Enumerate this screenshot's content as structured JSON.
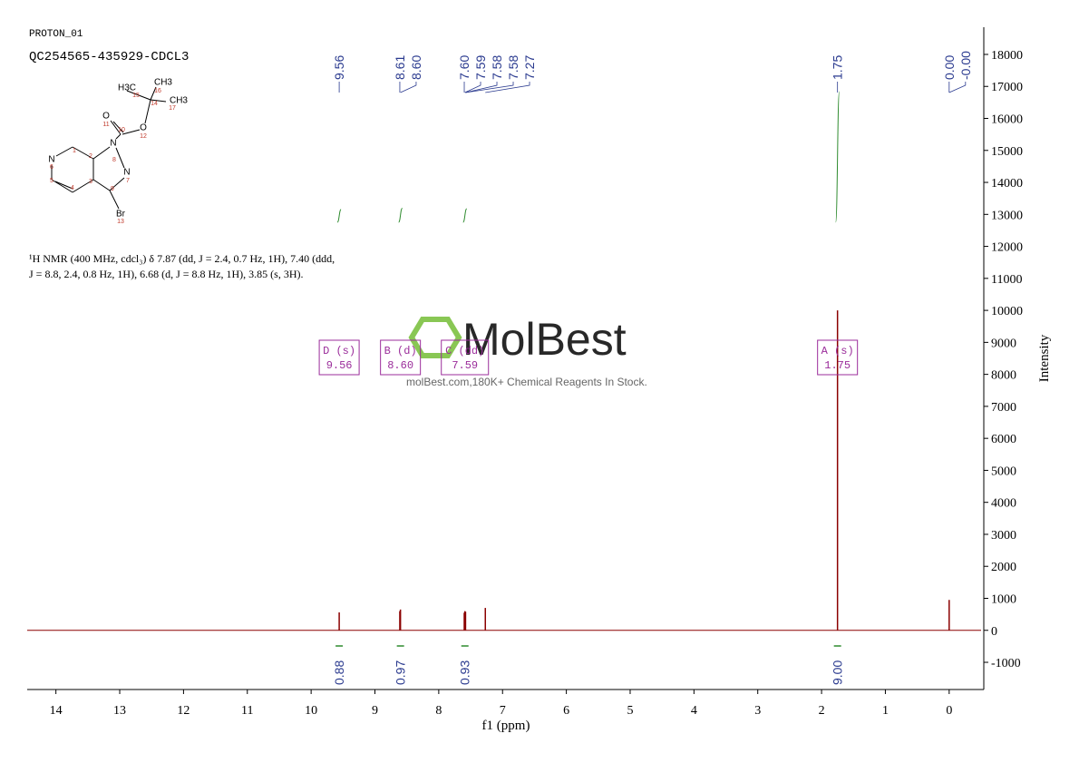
{
  "header": {
    "experiment": "PROTON_01",
    "sample": "QC254565-435929-CDCL3"
  },
  "description": [
    "¹H NMR (400 MHz, cdcl₃) δ 7.87 (dd, J = 2.4, 0.7 Hz, 1H), 7.40 (ddd,",
    "J = 8.8, 2.4, 0.8 Hz, 1H), 6.68 (d, J = 8.8 Hz, 1H), 3.85 (s, 3H)."
  ],
  "watermark": {
    "brand": "MolBest",
    "tagline": "molBest.com,180K+ Chemical Reagents In Stock."
  },
  "molecule": {
    "atoms": [
      "H3C",
      "CH3",
      "CH3",
      "O",
      "O",
      "N",
      "N",
      "N",
      "Br"
    ],
    "numbers": [
      "1",
      "2",
      "3",
      "4",
      "5",
      "6",
      "7",
      "8",
      "9",
      "10",
      "11",
      "12",
      "13",
      "14",
      "15",
      "16",
      "17"
    ]
  },
  "chart_data": {
    "type": "nmr",
    "xlabel": "f1 (ppm)",
    "ylabel": "Intensity",
    "xlim": [
      14.45,
      -0.5
    ],
    "xticks": [
      14,
      13,
      12,
      11,
      10,
      9,
      8,
      7,
      6,
      5,
      4,
      3,
      2,
      1,
      0
    ],
    "ylim": [
      -1850,
      18850
    ],
    "yticks": [
      -1000,
      0,
      1000,
      2000,
      3000,
      4000,
      5000,
      6000,
      7000,
      8000,
      9000,
      10000,
      11000,
      12000,
      13000,
      14000,
      15000,
      16000,
      17000,
      18000
    ],
    "color": "#8b0000",
    "series": [
      {
        "name": "spectrum",
        "color": "#8b0000",
        "x": [
          9.56,
          8.61,
          8.6,
          7.6,
          7.59,
          7.58,
          7.27,
          1.75,
          0
        ],
        "values": [
          560,
          600,
          650,
          550,
          600,
          580,
          700,
          10000,
          950
        ]
      }
    ],
    "peak_picks": [
      9.56,
      8.61,
      {
        "value": 8.6,
        "label": "8.60"
      },
      {
        "value": 7.6,
        "label": "7.60"
      },
      7.59,
      7.58,
      7.58,
      7.27,
      1.75,
      {
        "value": 0,
        "label": "0.00"
      },
      {
        "value": 0,
        "label": "-0.00"
      }
    ],
    "integrals": {
      "color": "#2e8b2e",
      "x": [
        9.56,
        8.6,
        7.59,
        1.75
      ],
      "values": [
        0.88,
        0.97,
        0.93,
        9
      ],
      "value_labels": [
        "0.88",
        "0.97",
        "0.93",
        "9.00"
      ]
    },
    "multiplets": {
      "color": "#9b2d9b",
      "labels": [
        "D (s)",
        "B (d)",
        "C (dd)",
        "A (s)"
      ],
      "x": [
        9.56,
        8.6,
        7.59,
        1.75
      ],
      "x_labels": [
        "9.56",
        "8.60",
        "7.59",
        "1.75"
      ]
    }
  }
}
